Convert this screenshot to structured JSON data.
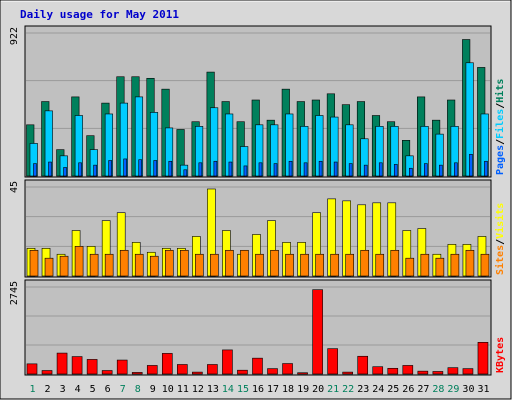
{
  "title": "Daily usage for May 2011",
  "colors": {
    "frame_bg": "#d8d8d8",
    "plot_bg": "#c0c0c0",
    "title": "#0000cc",
    "hits": "#00805c",
    "files": "#00ccff",
    "pages": "#0060ff",
    "visits": "#ffff00",
    "sites": "#ff8000",
    "kbytes": "#ff0000",
    "weekend_day": "#00805c",
    "weekday": "#000000"
  },
  "chart_data": {
    "type": "bar",
    "categories": [
      "1",
      "2",
      "3",
      "4",
      "5",
      "6",
      "7",
      "8",
      "9",
      "10",
      "11",
      "12",
      "13",
      "14",
      "15",
      "16",
      "17",
      "18",
      "19",
      "20",
      "21",
      "22",
      "23",
      "24",
      "25",
      "26",
      "27",
      "28",
      "29",
      "30",
      "31"
    ],
    "weekend_days": [
      "1",
      "7",
      "8",
      "14",
      "15",
      "21",
      "22",
      "28",
      "29"
    ],
    "panels": [
      {
        "id": "hits_files_pages",
        "max_label": "922",
        "ymax": 922,
        "legend": [
          "Pages",
          "/",
          "Files",
          "/",
          "Hits"
        ],
        "series": [
          {
            "name": "Hits",
            "values": [
              330,
              480,
              170,
              510,
              260,
              470,
              640,
              640,
              630,
              560,
              300,
              350,
              670,
              480,
              350,
              490,
              360,
              560,
              480,
              490,
              530,
              460,
              480,
              390,
              350,
              230,
              510,
              360,
              490,
              880,
              700
            ]
          },
          {
            "name": "Files",
            "values": [
              210,
              420,
              130,
              390,
              170,
              400,
              470,
              510,
              410,
              310,
              70,
              320,
              440,
              400,
              190,
              330,
              330,
              400,
              320,
              390,
              380,
              330,
              240,
              320,
              320,
              130,
              320,
              270,
              320,
              730,
              400
            ]
          },
          {
            "name": "Pages",
            "values": [
              80,
              90,
              55,
              85,
              70,
              100,
              110,
              105,
              100,
              95,
              40,
              85,
              95,
              90,
              65,
              85,
              80,
              95,
              85,
              95,
              90,
              80,
              70,
              85,
              75,
              50,
              80,
              70,
              85,
              140,
              95
            ]
          }
        ]
      },
      {
        "id": "visits_sites",
        "max_label": "45",
        "ymax": 45,
        "legend": [
          "Sites",
          "/",
          "Visits"
        ],
        "series": [
          {
            "name": "Visits",
            "values": [
              14,
              14,
              11,
              23,
              15,
              28,
              32,
              17,
              12,
              14,
              14,
              20,
              44,
              23,
              11,
              21,
              28,
              17,
              17,
              32,
              39,
              38,
              36,
              37,
              37,
              23,
              24,
              11,
              16,
              16,
              20
            ]
          },
          {
            "name": "Sites",
            "values": [
              13,
              9,
              10,
              15,
              11,
              11,
              13,
              11,
              10,
              13,
              13,
              11,
              11,
              13,
              13,
              11,
              13,
              11,
              11,
              11,
              11,
              11,
              13,
              11,
              13,
              9,
              11,
              9,
              11,
              13,
              11
            ]
          }
        ]
      },
      {
        "id": "kbytes",
        "max_label": "2745",
        "ymax": 2745,
        "legend": [
          "KBytes"
        ],
        "series": [
          {
            "name": "KBytes",
            "values": [
              320,
              110,
              660,
              550,
              460,
              110,
              440,
              50,
              270,
              650,
              300,
              60,
              300,
              760,
              120,
              500,
              170,
              330,
              40,
              2660,
              800,
              60,
              560,
              230,
              180,
              270,
              90,
              80,
              200,
              170,
              1000
            ]
          }
        ]
      }
    ]
  }
}
